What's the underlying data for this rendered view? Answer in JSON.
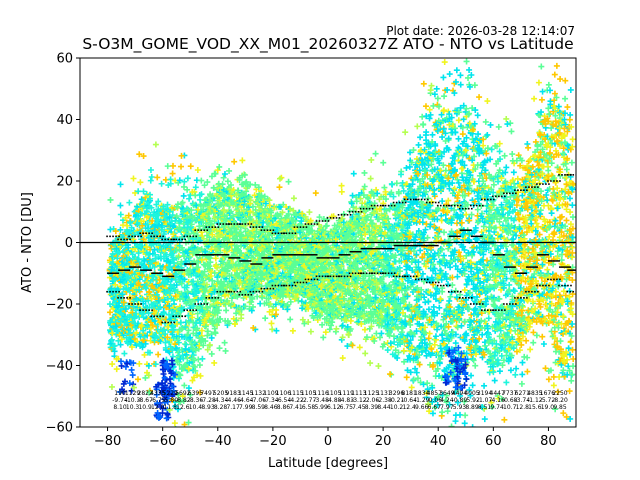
{
  "chart_data": {
    "type": "scatter",
    "title": "S-O3M_GOME_VOD_XX_M01_20260327Z ATO - NTO vs Latitude",
    "plot_date": "Plot date: 2026-03-28 12:14:07",
    "xlabel": "Latitude [degrees]",
    "ylabel": "ATO - NTO [DU]",
    "xlim": [
      -90,
      90
    ],
    "ylim": [
      -60,
      60
    ],
    "x_ticks": [
      -80,
      -60,
      -40,
      -20,
      0,
      20,
      40,
      60,
      80
    ],
    "y_ticks": [
      -60,
      -40,
      -20,
      0,
      20,
      40,
      60
    ],
    "x_tick_labels": [
      "−80",
      "−60",
      "−40",
      "−20",
      "0",
      "20",
      "40",
      "60",
      "80"
    ],
    "y_tick_labels": [
      "−60",
      "−40",
      "−20",
      "0",
      "20",
      "40",
      "60"
    ],
    "grid": false,
    "legend": "none",
    "marker": "plus",
    "colors": {
      "cyan": "#00e5ee",
      "aqua": "#1ef5dc",
      "mint": "#5aff96",
      "lime": "#b4ff50",
      "yellow": "#f0f51e",
      "orange": "#ffc800",
      "blue": "#0064ff",
      "darkblue": "#0028d2",
      "zero_line": "#000000"
    },
    "envelope": {
      "lat": [
        -79,
        -75,
        -70,
        -65,
        -60,
        -55,
        -50,
        -45,
        -40,
        -35,
        -30,
        -25,
        -20,
        -15,
        -10,
        -5,
        0,
        5,
        10,
        15,
        20,
        25,
        30,
        35,
        40,
        45,
        50,
        55,
        60,
        65,
        70,
        75,
        80,
        85,
        89
      ],
      "upper": [
        5,
        10,
        18,
        25,
        20,
        22,
        22,
        20,
        25,
        24,
        22,
        18,
        14,
        12,
        10,
        8,
        8,
        10,
        15,
        20,
        18,
        20,
        30,
        45,
        55,
        58,
        60,
        48,
        35,
        30,
        30,
        40,
        60,
        60,
        50
      ],
      "lower": [
        -40,
        -40,
        -40,
        -42,
        -40,
        -55,
        -50,
        -38,
        -30,
        -27,
        -24,
        -20,
        -22,
        -22,
        -20,
        -25,
        -28,
        -30,
        -30,
        -32,
        -34,
        -38,
        -45,
        -50,
        -58,
        -60,
        -60,
        -48,
        -55,
        -50,
        -40,
        -35,
        -40,
        -58,
        -60
      ]
    },
    "mean_lat": [
      -78,
      -74,
      -70,
      -66,
      -62,
      -58,
      -54,
      -50,
      -46,
      -42,
      -38,
      -34,
      -30,
      -26,
      -22,
      -18,
      -14,
      -10,
      -6,
      -2,
      2,
      6,
      10,
      14,
      18,
      22,
      26,
      30,
      34,
      38,
      42,
      46,
      50,
      54,
      58,
      62,
      66,
      70,
      74,
      78,
      82,
      86,
      89
    ],
    "mean": [
      -10,
      -9,
      -8,
      -9,
      -10,
      -11,
      -9,
      -7,
      -4,
      -4,
      -4,
      -5,
      -6,
      -7,
      -5,
      -4,
      -4,
      -4,
      -4,
      -5,
      -5,
      -4,
      -3,
      -2,
      -2,
      -2,
      -1,
      -1,
      -1,
      -1,
      0,
      2,
      4,
      2,
      0,
      -4,
      -8,
      -10,
      -8,
      -4,
      -6,
      -8,
      -9
    ],
    "upper_dots": [
      2,
      1,
      2,
      3,
      2,
      1,
      1,
      2,
      4,
      5,
      6,
      6,
      6,
      5,
      4,
      3,
      3,
      5,
      6,
      7,
      8,
      9,
      10,
      11,
      12,
      12,
      13,
      14,
      14,
      13,
      12,
      12,
      11,
      12,
      14,
      15,
      16,
      17,
      18,
      19,
      20,
      22,
      22
    ],
    "lower_dots": [
      -16,
      -18,
      -20,
      -22,
      -24,
      -26,
      -24,
      -22,
      -20,
      -18,
      -16,
      -16,
      -17,
      -16,
      -15,
      -14,
      -14,
      -13,
      -12,
      -11,
      -11,
      -11,
      -10,
      -10,
      -10,
      -10,
      -11,
      -11,
      -12,
      -13,
      -14,
      -16,
      -18,
      -20,
      -22,
      -22,
      -20,
      -18,
      -16,
      -14,
      -12,
      -14,
      -16
    ],
    "annotations": [
      {
        "lat": -79,
        "lines": [
          "190",
          "-9.74",
          "8.10"
        ]
      },
      {
        "lat": -75,
        "lines": [
          "1129",
          "-10.3",
          "10.3"
        ]
      },
      {
        "lat": -71,
        "lines": [
          "2822",
          "-8.67",
          "10.9"
        ]
      },
      {
        "lat": -67,
        "lines": [
          "4335",
          "-6.75",
          "12.0"
        ]
      },
      {
        "lat": -63,
        "lines": [
          "5229",
          "-5.80",
          "11.8"
        ]
      },
      {
        "lat": -59,
        "lines": [
          "5692",
          "-8.82",
          "12.6"
        ]
      },
      {
        "lat": -55,
        "lines": [
          "6395",
          "-8.36",
          "10.4"
        ]
      },
      {
        "lat": -51,
        "lines": [
          "7497",
          "-7.28",
          "8.93"
        ]
      },
      {
        "lat": -47,
        "lines": [
          "5205",
          "-4.34",
          "8.28"
        ]
      },
      {
        "lat": -43,
        "lines": [
          "9183",
          "-4.46",
          "7.17"
        ]
      },
      {
        "lat": -39,
        "lines": [
          "1145",
          "-4.64",
          "7.99"
        ]
      },
      {
        "lat": -35,
        "lines": [
          "1132",
          "-7.06",
          "8.59"
        ]
      },
      {
        "lat": -31,
        "lines": [
          "1109",
          "-7.34",
          "8.46"
        ]
      },
      {
        "lat": -27,
        "lines": [
          "1106",
          "-6.54",
          "8.86"
        ]
      },
      {
        "lat": -23,
        "lines": [
          "1115",
          "-4.22",
          "7.41"
        ]
      },
      {
        "lat": -19,
        "lines": [
          "1105",
          "-2.77",
          "6.58"
        ]
      },
      {
        "lat": -15,
        "lines": [
          "1116",
          "-3.48",
          "5.99"
        ]
      },
      {
        "lat": -11,
        "lines": [
          "1105",
          "-4.88",
          "6.12"
        ]
      },
      {
        "lat": -7,
        "lines": [
          "1119",
          "-4.83",
          "6.75"
        ]
      },
      {
        "lat": -3,
        "lines": [
          "1113",
          "-3.12",
          "7.45"
        ]
      },
      {
        "lat": 1,
        "lines": [
          "1125",
          "-2.06",
          "8.39"
        ]
      },
      {
        "lat": 5,
        "lines": [
          "1131",
          "-2.38",
          "8.44"
        ]
      },
      {
        "lat": 9,
        "lines": [
          "3296",
          "-0.21",
          "10.2"
        ]
      },
      {
        "lat": 13,
        "lines": [
          "8181",
          "-0.64",
          "12.4"
        ]
      },
      {
        "lat": 17,
        "lines": [
          "1834",
          "-1.29",
          "9.66"
        ]
      },
      {
        "lat": 21,
        "lines": [
          "4857",
          "-0.06",
          "6.67"
        ]
      },
      {
        "lat": 25,
        "lines": [
          "3649",
          "4.24",
          "7.97"
        ]
      },
      {
        "lat": 29,
        "lines": [
          "4494",
          "-0.89",
          "5.93"
        ]
      },
      {
        "lat": 33,
        "lines": [
          "4005",
          "-5.92",
          "8.89"
        ]
      },
      {
        "lat": 37,
        "lines": [
          "3194",
          "-1.07",
          "8.51"
        ]
      },
      {
        "lat": 41,
        "lines": [
          "4447",
          "-4.16",
          "9.74"
        ]
      },
      {
        "lat": 45,
        "lines": [
          "7737",
          "-0.68",
          "10.7"
        ]
      },
      {
        "lat": 49,
        "lines": [
          "6271",
          "-3.74",
          "12.8"
        ]
      },
      {
        "lat": 53,
        "lines": [
          "4835",
          "-1.12",
          "15.6"
        ]
      },
      {
        "lat": 57,
        "lines": [
          "1676",
          "-5.72",
          "19.0"
        ]
      },
      {
        "lat": 61,
        "lines": [
          "2250",
          "-8.20",
          "9.85"
        ]
      }
    ]
  }
}
